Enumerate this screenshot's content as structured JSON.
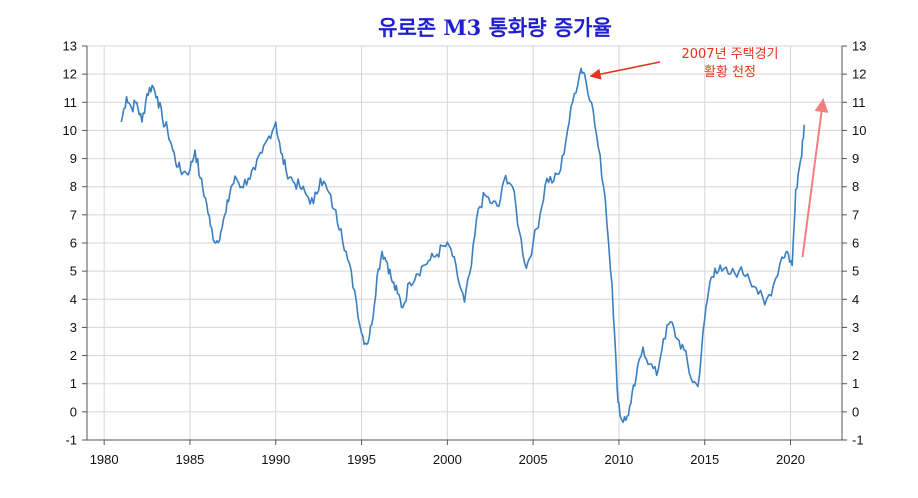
{
  "chart_data": {
    "type": "line",
    "title": "유로존 M3 통화량 증가율",
    "xlabel": "",
    "ylabel": "",
    "xlim": [
      1979,
      2023
    ],
    "ylim": [
      -1,
      13
    ],
    "xticks": [
      1980,
      1985,
      1990,
      1995,
      2000,
      2005,
      2010,
      2015,
      2020
    ],
    "yticks": [
      -1,
      0,
      1,
      2,
      3,
      4,
      5,
      6,
      7,
      8,
      9,
      10,
      11,
      12,
      13
    ],
    "grid": true,
    "y_axis_both_sides": true,
    "series": [
      {
        "color": "#3a7fc1",
        "points": [
          [
            1981.0,
            10.3
          ],
          [
            1981.3,
            11.2
          ],
          [
            1981.6,
            10.8
          ],
          [
            1981.9,
            11.0
          ],
          [
            1982.2,
            10.3
          ],
          [
            1982.5,
            11.3
          ],
          [
            1982.8,
            11.6
          ],
          [
            1983.1,
            11.2
          ],
          [
            1983.4,
            10.4
          ],
          [
            1983.7,
            10.0
          ],
          [
            1984.0,
            9.3
          ],
          [
            1984.3,
            8.7
          ],
          [
            1984.6,
            8.5
          ],
          [
            1985.0,
            8.6
          ],
          [
            1985.3,
            9.3
          ],
          [
            1985.6,
            8.3
          ],
          [
            1985.9,
            7.6
          ],
          [
            1986.2,
            6.6
          ],
          [
            1986.5,
            6.0
          ],
          [
            1986.8,
            6.4
          ],
          [
            1987.1,
            7.1
          ],
          [
            1987.4,
            8.0
          ],
          [
            1987.7,
            8.3
          ],
          [
            1988.0,
            8.0
          ],
          [
            1988.4,
            8.3
          ],
          [
            1988.8,
            8.6
          ],
          [
            1989.2,
            9.2
          ],
          [
            1989.6,
            9.8
          ],
          [
            1990.0,
            10.3
          ],
          [
            1990.3,
            9.2
          ],
          [
            1990.6,
            8.6
          ],
          [
            1991.0,
            8.2
          ],
          [
            1991.4,
            8.0
          ],
          [
            1991.8,
            7.7
          ],
          [
            1992.2,
            7.4
          ],
          [
            1992.6,
            8.3
          ],
          [
            1993.0,
            7.9
          ],
          [
            1993.4,
            7.2
          ],
          [
            1993.8,
            6.5
          ],
          [
            1994.2,
            5.4
          ],
          [
            1994.6,
            4.3
          ],
          [
            1995.0,
            2.8
          ],
          [
            1995.3,
            2.4
          ],
          [
            1995.6,
            3.1
          ],
          [
            1995.9,
            4.8
          ],
          [
            1996.2,
            5.7
          ],
          [
            1996.5,
            5.3
          ],
          [
            1996.8,
            4.6
          ],
          [
            1997.1,
            4.2
          ],
          [
            1997.4,
            3.7
          ],
          [
            1997.8,
            4.6
          ],
          [
            1998.2,
            4.9
          ],
          [
            1998.6,
            5.2
          ],
          [
            1999.0,
            5.4
          ],
          [
            1999.4,
            5.6
          ],
          [
            1999.8,
            5.9
          ],
          [
            2000.2,
            5.8
          ],
          [
            2000.6,
            4.8
          ],
          [
            2001.0,
            3.9
          ],
          [
            2001.4,
            5.2
          ],
          [
            2001.8,
            7.2
          ],
          [
            2002.2,
            7.7
          ],
          [
            2002.6,
            7.4
          ],
          [
            2003.0,
            7.3
          ],
          [
            2003.4,
            8.4
          ],
          [
            2003.8,
            8.0
          ],
          [
            2004.2,
            6.4
          ],
          [
            2004.6,
            5.1
          ],
          [
            2005.0,
            6.0
          ],
          [
            2005.4,
            7.0
          ],
          [
            2005.8,
            8.3
          ],
          [
            2006.2,
            8.2
          ],
          [
            2006.6,
            8.6
          ],
          [
            2007.0,
            10.0
          ],
          [
            2007.4,
            11.3
          ],
          [
            2007.8,
            12.2
          ],
          [
            2008.0,
            12.0
          ],
          [
            2008.4,
            11.0
          ],
          [
            2008.8,
            9.4
          ],
          [
            2009.2,
            7.6
          ],
          [
            2009.6,
            4.5
          ],
          [
            2009.9,
            0.8
          ],
          [
            2010.1,
            -0.2
          ],
          [
            2010.4,
            -0.3
          ],
          [
            2010.7,
            0.3
          ],
          [
            2011.0,
            1.2
          ],
          [
            2011.4,
            2.3
          ],
          [
            2011.8,
            1.7
          ],
          [
            2012.2,
            1.3
          ],
          [
            2012.6,
            2.6
          ],
          [
            2013.0,
            3.2
          ],
          [
            2013.4,
            2.6
          ],
          [
            2013.8,
            2.2
          ],
          [
            2014.2,
            1.2
          ],
          [
            2014.6,
            0.9
          ],
          [
            2015.0,
            3.3
          ],
          [
            2015.3,
            4.6
          ],
          [
            2015.6,
            5.1
          ],
          [
            2016.0,
            5.0
          ],
          [
            2016.5,
            4.9
          ],
          [
            2017.0,
            5.0
          ],
          [
            2017.5,
            4.9
          ],
          [
            2018.0,
            4.4
          ],
          [
            2018.5,
            3.8
          ],
          [
            2019.0,
            4.5
          ],
          [
            2019.5,
            5.5
          ],
          [
            2019.8,
            5.7
          ],
          [
            2020.1,
            5.2
          ],
          [
            2020.3,
            7.9
          ],
          [
            2020.6,
            9.0
          ],
          [
            2020.8,
            10.2
          ]
        ]
      }
    ],
    "annotations": [
      {
        "lines": [
          "2007년 주택경기",
          "활황 천정"
        ],
        "color": "#e8321e",
        "arrow_to": [
          2008.0,
          12.0
        ]
      },
      {
        "lines": [],
        "color": "#f08080",
        "arrow_from": [
          2020.7,
          5.5
        ],
        "arrow_to": [
          2021.9,
          11.1
        ]
      }
    ]
  }
}
